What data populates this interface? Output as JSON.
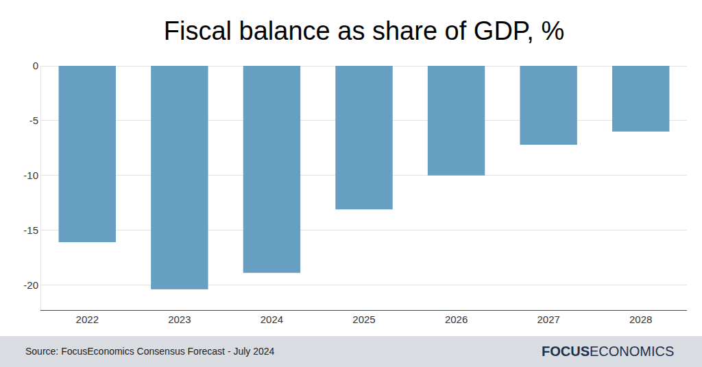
{
  "chart_data": {
    "type": "bar",
    "title": "Fiscal balance as share of GDP, %",
    "categories": [
      "2022",
      "2023",
      "2024",
      "2025",
      "2026",
      "2027",
      "2028"
    ],
    "values": [
      -16.1,
      -20.4,
      -18.9,
      -13.1,
      -10.0,
      -7.2,
      -6.0
    ],
    "color": "#669fc2",
    "ylim": [
      -22.3,
      0
    ],
    "yticks": [
      0,
      -5,
      -10,
      -15,
      -20
    ],
    "grid": true,
    "source": "Source: FocusEconomics Consensus Forecast - July 2024",
    "logo": [
      "FOCUS",
      "ECONOMICS"
    ]
  }
}
